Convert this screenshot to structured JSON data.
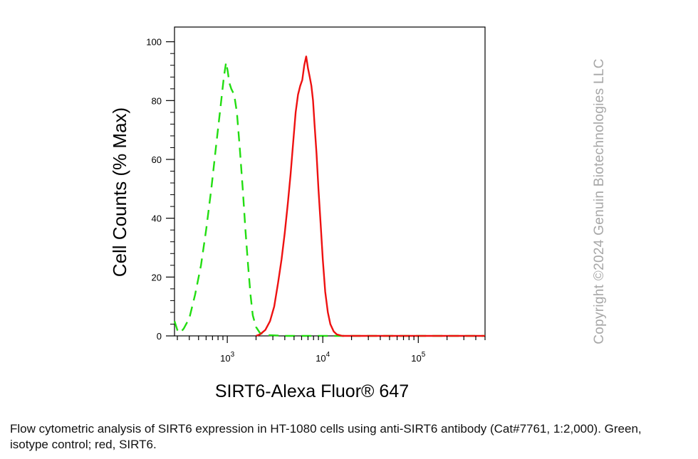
{
  "chart_data": {
    "type": "line",
    "title": "",
    "xlabel": "SIRT6-Alexa Fluor® 647",
    "ylabel": "Cell Counts (% Max)",
    "x_scale": "log",
    "xlim": [
      280,
      500000
    ],
    "ylim": [
      0,
      105
    ],
    "grid": false,
    "legend": "none",
    "y_ticks": [
      {
        "value": 0,
        "label": "0"
      },
      {
        "value": 20,
        "label": "20"
      },
      {
        "value": 40,
        "label": "40"
      },
      {
        "value": 60,
        "label": "60"
      },
      {
        "value": 80,
        "label": "80"
      },
      {
        "value": 100,
        "label": "100"
      }
    ],
    "x_ticks": [
      {
        "value": 1000,
        "base": "10",
        "exp": "3"
      },
      {
        "value": 10000,
        "base": "10",
        "exp": "4"
      },
      {
        "value": 100000,
        "base": "10",
        "exp": "5"
      }
    ],
    "series": [
      {
        "color": "#22dd11",
        "style": "dashed",
        "points": [
          [
            280,
            5
          ],
          [
            300,
            2
          ],
          [
            320,
            1
          ],
          [
            350,
            2.5
          ],
          [
            400,
            6
          ],
          [
            460,
            14
          ],
          [
            530,
            24
          ],
          [
            600,
            36
          ],
          [
            680,
            50
          ],
          [
            760,
            64
          ],
          [
            850,
            78
          ],
          [
            920,
            88
          ],
          [
            970,
            93
          ],
          [
            1010,
            90
          ],
          [
            1050,
            86
          ],
          [
            1100,
            84
          ],
          [
            1180,
            82
          ],
          [
            1260,
            76
          ],
          [
            1350,
            64
          ],
          [
            1450,
            50
          ],
          [
            1550,
            36
          ],
          [
            1650,
            24
          ],
          [
            1750,
            14
          ],
          [
            1850,
            7
          ],
          [
            2000,
            3
          ],
          [
            2200,
            1
          ],
          [
            2600,
            0.3
          ],
          [
            4000,
            0
          ],
          [
            10000,
            0
          ],
          [
            20000,
            0
          ],
          [
            100000,
            0
          ],
          [
            500000,
            0
          ]
        ]
      },
      {
        "color": "#ee1111",
        "style": "solid",
        "points": [
          [
            2000,
            0
          ],
          [
            2200,
            0.5
          ],
          [
            2500,
            2
          ],
          [
            2800,
            5
          ],
          [
            3100,
            10
          ],
          [
            3400,
            18
          ],
          [
            3700,
            26
          ],
          [
            4000,
            35
          ],
          [
            4300,
            45
          ],
          [
            4600,
            55
          ],
          [
            4900,
            66
          ],
          [
            5200,
            76
          ],
          [
            5500,
            82
          ],
          [
            5800,
            85
          ],
          [
            6100,
            87
          ],
          [
            6400,
            92
          ],
          [
            6700,
            95
          ],
          [
            7000,
            91
          ],
          [
            7300,
            88
          ],
          [
            7600,
            85
          ],
          [
            7900,
            80
          ],
          [
            8200,
            72
          ],
          [
            8600,
            62
          ],
          [
            9000,
            50
          ],
          [
            9500,
            38
          ],
          [
            10000,
            26
          ],
          [
            10600,
            15
          ],
          [
            11300,
            8
          ],
          [
            12000,
            4
          ],
          [
            13000,
            1.5
          ],
          [
            14000,
            0.5
          ],
          [
            16000,
            0
          ],
          [
            30000,
            0
          ],
          [
            100000,
            0
          ],
          [
            500000,
            0
          ]
        ]
      }
    ]
  },
  "caption": "Flow cytometric analysis of SIRT6 expression in HT-1080 cells using anti-SIRT6 antibody (Cat#7761, 1:2,000). Green, isotype control; red, SIRT6.",
  "watermark": "Copyright ©2024 Genuin Biotechnologies LLC"
}
